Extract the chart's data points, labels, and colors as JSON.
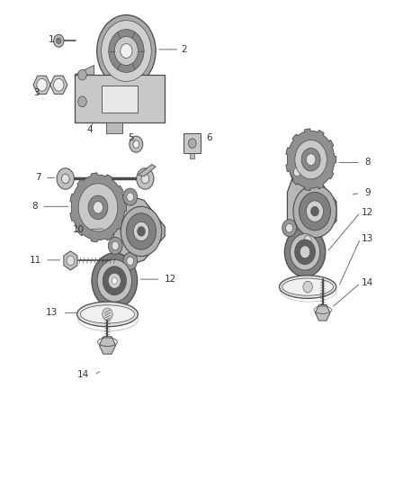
{
  "background_color": "#ffffff",
  "fig_width": 4.38,
  "fig_height": 5.33,
  "dpi": 100,
  "label_fontsize": 7.5,
  "label_color": "#333333",
  "line_color": "#4a4a4a",
  "parts": {
    "1": {
      "label": [
        0.135,
        0.918
      ],
      "line": [
        [
          0.155,
          0.918
        ],
        [
          0.175,
          0.916
        ]
      ]
    },
    "2": {
      "label": [
        0.495,
        0.9
      ],
      "line": [
        [
          0.475,
          0.9
        ],
        [
          0.445,
          0.898
        ]
      ]
    },
    "3": {
      "label": [
        0.095,
        0.82
      ],
      "line": [
        [
          0.115,
          0.82
        ],
        [
          0.13,
          0.822
        ]
      ]
    },
    "4": {
      "label": [
        0.23,
        0.728
      ],
      "line": [
        [
          0.25,
          0.728
        ],
        [
          0.268,
          0.73
        ]
      ]
    },
    "5": {
      "label": [
        0.335,
        0.7
      ],
      "line": [
        [
          0.345,
          0.7
        ],
        [
          0.352,
          0.696
        ]
      ]
    },
    "6": {
      "label": [
        0.53,
        0.715
      ],
      "line": [
        [
          0.51,
          0.715
        ],
        [
          0.498,
          0.712
        ]
      ]
    },
    "7": {
      "label": [
        0.1,
        0.628
      ],
      "line": [
        [
          0.12,
          0.628
        ],
        [
          0.148,
          0.626
        ]
      ]
    },
    "8L": {
      "label": [
        0.09,
        0.568
      ],
      "line": [
        [
          0.11,
          0.568
        ],
        [
          0.185,
          0.566
        ]
      ]
    },
    "9": {
      "label": [
        0.93,
        0.598
      ],
      "line": [
        [
          0.91,
          0.598
        ],
        [
          0.888,
          0.596
        ]
      ]
    },
    "10": {
      "label": [
        0.2,
        0.522
      ],
      "line": [
        [
          0.228,
          0.522
        ],
        [
          0.268,
          0.524
        ]
      ]
    },
    "11": {
      "label": [
        0.09,
        0.458
      ],
      "line": [
        [
          0.115,
          0.458
        ],
        [
          0.168,
          0.458
        ]
      ]
    },
    "12L": {
      "label": [
        0.43,
        0.415
      ],
      "line": [
        [
          0.408,
          0.415
        ],
        [
          0.365,
          0.413
        ]
      ]
    },
    "13L": {
      "label": [
        0.27,
        0.345
      ],
      "line": [
        [
          0.285,
          0.35
        ],
        [
          0.3,
          0.355
        ]
      ]
    },
    "14L": {
      "label": [
        0.26,
        0.215
      ],
      "line": [
        [
          0.272,
          0.215
        ],
        [
          0.278,
          0.23
        ]
      ]
    },
    "8R": {
      "label": [
        0.93,
        0.66
      ],
      "line": [
        [
          0.91,
          0.66
        ],
        [
          0.87,
          0.658
        ]
      ]
    },
    "12R": {
      "label": [
        0.93,
        0.558
      ],
      "line": [
        [
          0.91,
          0.558
        ],
        [
          0.874,
          0.556
        ]
      ]
    },
    "13R": {
      "label": [
        0.93,
        0.502
      ],
      "line": [
        [
          0.91,
          0.502
        ],
        [
          0.87,
          0.5
        ]
      ]
    },
    "14R": {
      "label": [
        0.93,
        0.41
      ],
      "line": [
        [
          0.91,
          0.41
        ],
        [
          0.856,
          0.415
        ]
      ]
    }
  }
}
